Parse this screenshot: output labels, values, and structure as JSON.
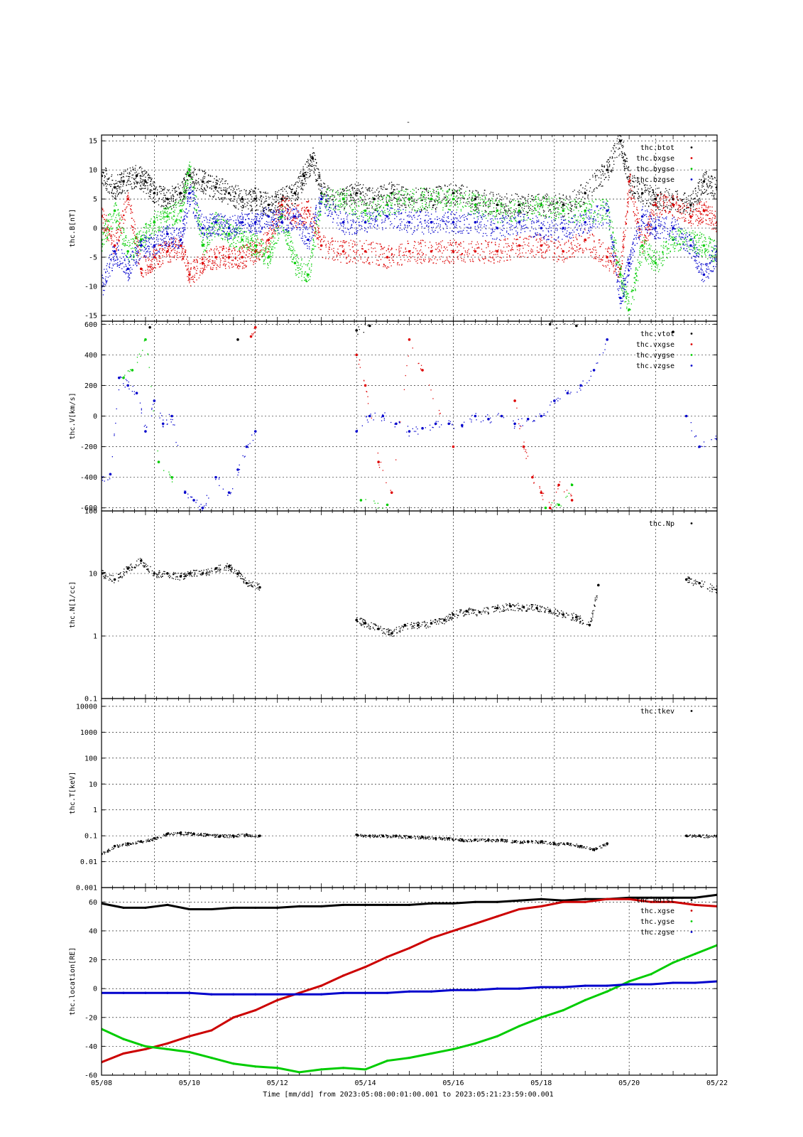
{
  "figure": {
    "top_title": "-",
    "xlabel_text": "Time [mm/dd]  from 2023:05:08:00:01:00.001  to  2023:05:21:23:59:00.001",
    "x_tick_labels": [
      "05/08",
      "05/10",
      "05/12",
      "05/14",
      "05/16",
      "05/18",
      "05/20",
      "05/22"
    ]
  },
  "chart_data": [
    {
      "type": "scatter",
      "ylabel": "thc.B[nT]",
      "xlim": [
        "05/08",
        "05/22"
      ],
      "ylim": [
        -16,
        16
      ],
      "y_ticks": [
        15,
        10,
        5,
        0,
        -5,
        -10,
        -15
      ],
      "y_tick_labels": [
        "15",
        "10",
        "5",
        "0",
        "-5",
        "-10",
        "-15"
      ],
      "grid": true,
      "legend_position": "top-right",
      "series": [
        {
          "name": "thc.btot",
          "color": "#000000",
          "x_days": [
            0,
            0.3,
            0.5,
            0.8,
            1.0,
            1.2,
            1.5,
            1.8,
            2.0,
            2.3,
            2.6,
            2.9,
            3.2,
            3.5,
            3.8,
            4.1,
            4.4,
            4.6,
            4.8,
            5.0,
            5.5,
            5.8,
            6.2,
            6.6,
            7.0,
            7.5,
            8.0,
            8.5,
            9.0,
            9.5,
            10.0,
            10.5,
            11.0,
            11.5,
            11.8,
            12.0,
            12.3,
            12.6,
            13.0,
            13.4,
            13.7,
            14.0
          ],
          "values": [
            9,
            7,
            8,
            9,
            8,
            6,
            5,
            6,
            9,
            8,
            7,
            6,
            5,
            5,
            4,
            5,
            6,
            9,
            12,
            6,
            5,
            6,
            5,
            6,
            5,
            5,
            6,
            5,
            4,
            4,
            4,
            4,
            6,
            10,
            15,
            8,
            6,
            5,
            5,
            4,
            8,
            7
          ]
        },
        {
          "name": "thc.bxgse",
          "color": "#dd0000",
          "x_days": [
            0,
            0.3,
            0.6,
            0.9,
            1.2,
            1.5,
            1.8,
            2.0,
            2.3,
            2.6,
            2.9,
            3.2,
            3.5,
            3.8,
            4.1,
            4.4,
            4.7,
            5.0,
            5.5,
            6.0,
            6.5,
            7.0,
            7.5,
            8.0,
            8.5,
            9.0,
            9.5,
            10.0,
            10.5,
            11.0,
            11.5,
            11.8,
            12.0,
            12.3,
            12.6,
            13.0,
            13.4,
            13.7,
            14.0
          ],
          "values": [
            2,
            -3,
            5,
            -7,
            -5,
            -4,
            -3,
            -8,
            -6,
            -5,
            -5,
            -5,
            -4,
            -2,
            4,
            2,
            3,
            -3,
            -4,
            -4,
            -5,
            -4,
            -4,
            -4,
            -4,
            -4,
            -3,
            -3,
            -4,
            -2,
            -5,
            -7,
            8,
            -3,
            4,
            4,
            2,
            3,
            1
          ]
        },
        {
          "name": "thc.bygse",
          "color": "#00cc00",
          "x_days": [
            0,
            0.3,
            0.6,
            0.9,
            1.2,
            1.5,
            1.8,
            2.0,
            2.3,
            2.6,
            2.9,
            3.2,
            3.5,
            3.8,
            4.1,
            4.4,
            4.7,
            5.0,
            5.5,
            6.0,
            6.5,
            7.0,
            7.5,
            8.0,
            8.5,
            9.0,
            9.5,
            10.0,
            10.5,
            11.0,
            11.5,
            11.8,
            12.0,
            12.3,
            12.6,
            13.0,
            13.4,
            13.7,
            14.0
          ],
          "values": [
            -2,
            3,
            -4,
            -2,
            1,
            2,
            3,
            10,
            -3,
            1,
            -1,
            -2,
            -3,
            -5,
            2,
            -6,
            -8,
            5,
            5,
            3,
            4,
            5,
            5,
            5,
            4,
            3,
            3,
            4,
            3,
            3,
            3,
            -8,
            -14,
            -3,
            -6,
            -2,
            -2,
            -3,
            -4
          ]
        },
        {
          "name": "thc.bzgse",
          "color": "#0000cc",
          "x_days": [
            0,
            0.3,
            0.6,
            0.9,
            1.2,
            1.5,
            1.8,
            2.0,
            2.3,
            2.6,
            2.9,
            3.2,
            3.5,
            3.8,
            4.1,
            4.4,
            4.7,
            5.0,
            5.5,
            6.0,
            6.5,
            7.0,
            7.5,
            8.0,
            8.5,
            9.0,
            9.5,
            10.0,
            10.5,
            11.0,
            11.5,
            11.8,
            12.0,
            12.3,
            12.6,
            13.0,
            13.4,
            13.7,
            14.0
          ],
          "values": [
            -10,
            -4,
            -7,
            -3,
            -3,
            -1,
            -2,
            6,
            0,
            1,
            0,
            1,
            1,
            2,
            1,
            2,
            -2,
            5,
            1,
            1,
            2,
            1,
            1,
            1,
            1,
            0,
            1,
            0,
            0,
            1,
            3,
            -12,
            -6,
            2,
            0,
            0,
            -3,
            -8,
            -4
          ]
        }
      ]
    },
    {
      "type": "scatter",
      "ylabel": "thc.V[km/s]",
      "xlim": [
        "05/08",
        "05/22"
      ],
      "ylim": [
        -620,
        620
      ],
      "y_ticks": [
        600,
        400,
        200,
        0,
        -200,
        -400,
        -600
      ],
      "y_tick_labels": [
        "600",
        "400",
        "200",
        "0",
        "-200",
        "-400",
        "-600"
      ],
      "grid": true,
      "legend_position": "top-right",
      "series": [
        {
          "name": "thc.vtot",
          "color": "#000000",
          "x_days": [
            1.1,
            3.1,
            5.8,
            6.1,
            10.2,
            10.8,
            13.0
          ],
          "values": [
            580,
            500,
            560,
            590,
            600,
            590,
            550
          ]
        },
        {
          "name": "thc.vxgse",
          "color": "#dd0000",
          "x_days": [
            3.4,
            3.5,
            5.8,
            6.0,
            6.3,
            6.6,
            7.0,
            7.3,
            8.0,
            9.4,
            9.6,
            9.8,
            10.0,
            10.2,
            10.4,
            10.7
          ],
          "values": [
            520,
            580,
            400,
            200,
            -300,
            -500,
            500,
            300,
            -200,
            100,
            -200,
            -400,
            -500,
            -600,
            -450,
            -550
          ]
        },
        {
          "name": "thc.vygse",
          "color": "#00cc00",
          "x_days": [
            0.5,
            0.7,
            1.0,
            1.3,
            1.6,
            5.9,
            6.5,
            10.1,
            10.4,
            10.7
          ],
          "values": [
            250,
            300,
            500,
            -300,
            -400,
            -550,
            -580,
            -600,
            -580,
            -450
          ]
        },
        {
          "name": "thc.vzgse",
          "color": "#0000cc",
          "x_days": [
            0,
            0.2,
            0.4,
            0.6,
            0.8,
            1.0,
            1.2,
            1.4,
            1.6,
            1.9,
            2.1,
            2.3,
            2.6,
            2.9,
            3.1,
            3.3,
            3.5,
            5.8,
            6.1,
            6.4,
            6.7,
            7.0,
            7.3,
            7.6,
            7.9,
            8.2,
            8.5,
            8.8,
            9.1,
            9.4,
            9.7,
            10.0,
            10.3,
            10.6,
            10.9,
            11.2,
            11.5,
            13.3,
            13.6,
            14.0
          ],
          "values": [
            -400,
            -380,
            250,
            200,
            150,
            -100,
            100,
            -50,
            0,
            -500,
            -550,
            -600,
            -400,
            -500,
            -350,
            -200,
            -100,
            -100,
            0,
            0,
            -50,
            -100,
            -80,
            -50,
            -50,
            -60,
            0,
            -20,
            0,
            -50,
            -20,
            0,
            100,
            150,
            200,
            300,
            500,
            0,
            -200,
            -150
          ]
        }
      ]
    },
    {
      "type": "scatter",
      "ylabel": "thc.N[1/cc]",
      "xlim": [
        "05/08",
        "05/22"
      ],
      "y_scale": "log",
      "ylim": [
        0.1,
        100
      ],
      "y_ticks": [
        100,
        10,
        1,
        0.1
      ],
      "y_tick_labels": [
        "100",
        "10",
        "1",
        "0.1"
      ],
      "grid": true,
      "legend_position": "top-right",
      "series": [
        {
          "name": "thc.Np",
          "color": "#000000",
          "x_days": [
            0,
            0.3,
            0.6,
            0.9,
            1.2,
            1.5,
            1.8,
            2.0,
            2.3,
            2.6,
            2.9,
            3.1,
            3.3,
            3.6,
            5.8,
            6.0,
            6.3,
            6.6,
            6.9,
            7.2,
            7.5,
            7.8,
            8.0,
            8.3,
            8.6,
            9.0,
            9.3,
            9.6,
            9.9,
            10.2,
            10.5,
            10.8,
            11.1,
            11.3,
            13.3,
            13.6,
            14.0
          ],
          "values": [
            10,
            8,
            12,
            16,
            10,
            10,
            9,
            10,
            10,
            12,
            13,
            10,
            7,
            6,
            1.8,
            1.6,
            1.3,
            1.1,
            1.5,
            1.5,
            1.6,
            1.8,
            2.2,
            2.5,
            2.4,
            2.8,
            3.0,
            2.9,
            2.8,
            2.5,
            2.2,
            2.0,
            1.5,
            6.5,
            8.0,
            7.0,
            5.5
          ]
        }
      ]
    },
    {
      "type": "scatter",
      "ylabel": "thc.T[keV]",
      "xlim": [
        "05/08",
        "05/22"
      ],
      "y_scale": "log",
      "ylim": [
        0.001,
        20000
      ],
      "y_ticks": [
        10000,
        1000,
        100,
        10,
        1,
        0.1,
        0.01,
        0.001
      ],
      "y_tick_labels": [
        "10000",
        "1000",
        "100",
        "10",
        "1",
        "0.1",
        "0.01",
        "0.001"
      ],
      "grid": true,
      "legend_position": "top-right",
      "series": [
        {
          "name": "thc.tkev",
          "color": "#000000",
          "x_days": [
            0,
            0.3,
            0.6,
            0.9,
            1.2,
            1.5,
            1.8,
            2.1,
            2.4,
            2.7,
            3.0,
            3.3,
            3.6,
            5.8,
            6.1,
            6.4,
            6.7,
            7.0,
            7.3,
            7.6,
            7.9,
            8.2,
            8.5,
            8.8,
            9.1,
            9.4,
            9.7,
            10.0,
            10.3,
            10.6,
            10.9,
            11.2,
            11.5,
            13.3,
            13.6,
            14.0
          ],
          "values": [
            0.02,
            0.04,
            0.05,
            0.06,
            0.08,
            0.12,
            0.13,
            0.12,
            0.11,
            0.1,
            0.1,
            0.11,
            0.1,
            0.11,
            0.1,
            0.1,
            0.1,
            0.09,
            0.09,
            0.08,
            0.08,
            0.07,
            0.07,
            0.07,
            0.07,
            0.06,
            0.06,
            0.06,
            0.05,
            0.05,
            0.04,
            0.03,
            0.05,
            0.1,
            0.1,
            0.1
          ]
        }
      ]
    },
    {
      "type": "line",
      "ylabel": "thc.location[RE]",
      "xlim": [
        "05/08",
        "05/22"
      ],
      "ylim": [
        -60,
        70
      ],
      "y_ticks": [
        60,
        40,
        20,
        0,
        -20,
        -40,
        -60
      ],
      "y_tick_labels": [
        "60",
        "40",
        "20",
        "0",
        "-20",
        "-40",
        "-60"
      ],
      "grid": true,
      "legend_position": "top-right",
      "series": [
        {
          "name": "thc.Rdist",
          "color": "#000000",
          "x_days": [
            0,
            0.5,
            1.0,
            1.5,
            2.0,
            2.5,
            3.0,
            3.5,
            4.0,
            4.5,
            5.0,
            5.5,
            6.0,
            6.5,
            7.0,
            7.5,
            8.0,
            8.5,
            9.0,
            9.5,
            10.0,
            10.5,
            11.0,
            11.5,
            12.0,
            12.5,
            13.0,
            13.5,
            14.0
          ],
          "values": [
            59,
            56,
            56,
            58,
            55,
            55,
            56,
            56,
            56,
            57,
            57,
            58,
            58,
            58,
            58,
            59,
            59,
            60,
            60,
            61,
            62,
            61,
            62,
            62,
            63,
            63,
            63,
            63,
            65
          ]
        },
        {
          "name": "thc.xgse",
          "color": "#cc0000",
          "x_days": [
            0,
            0.5,
            1.0,
            1.5,
            2.0,
            2.5,
            3.0,
            3.5,
            4.0,
            4.5,
            5.0,
            5.5,
            6.0,
            6.5,
            7.0,
            7.5,
            8.0,
            8.5,
            9.0,
            9.5,
            10.0,
            10.5,
            11.0,
            11.5,
            12.0,
            12.5,
            13.0,
            13.5,
            14.0
          ],
          "values": [
            -51,
            -45,
            -42,
            -38,
            -33,
            -29,
            -20,
            -15,
            -8,
            -3,
            2,
            9,
            15,
            22,
            28,
            35,
            40,
            45,
            50,
            55,
            57,
            60,
            60,
            62,
            62,
            60,
            60,
            58,
            57
          ]
        },
        {
          "name": "thc.ygse",
          "color": "#00cc00",
          "x_days": [
            0,
            0.5,
            1.0,
            1.5,
            2.0,
            2.5,
            3.0,
            3.5,
            4.0,
            4.5,
            5.0,
            5.5,
            6.0,
            6.5,
            7.0,
            7.5,
            8.0,
            8.5,
            9.0,
            9.5,
            10.0,
            10.5,
            11.0,
            11.5,
            12.0,
            12.5,
            13.0,
            13.5,
            14.0
          ],
          "values": [
            -28,
            -35,
            -40,
            -42,
            -44,
            -48,
            -52,
            -54,
            -55,
            -58,
            -56,
            -55,
            -56,
            -50,
            -48,
            -45,
            -42,
            -38,
            -33,
            -26,
            -20,
            -15,
            -8,
            -2,
            5,
            10,
            18,
            24,
            30
          ]
        },
        {
          "name": "thc.zgse",
          "color": "#0000cc",
          "x_days": [
            0,
            0.5,
            1.0,
            1.5,
            2.0,
            2.5,
            3.0,
            3.5,
            4.0,
            4.5,
            5.0,
            5.5,
            6.0,
            6.5,
            7.0,
            7.5,
            8.0,
            8.5,
            9.0,
            9.5,
            10.0,
            10.5,
            11.0,
            11.5,
            12.0,
            12.5,
            13.0,
            13.5,
            14.0
          ],
          "values": [
            -3,
            -3,
            -3,
            -3,
            -3,
            -4,
            -4,
            -4,
            -4,
            -4,
            -4,
            -3,
            -3,
            -3,
            -2,
            -2,
            -1,
            -1,
            0,
            0,
            1,
            1,
            2,
            2,
            3,
            3,
            4,
            4,
            5
          ]
        }
      ]
    }
  ]
}
